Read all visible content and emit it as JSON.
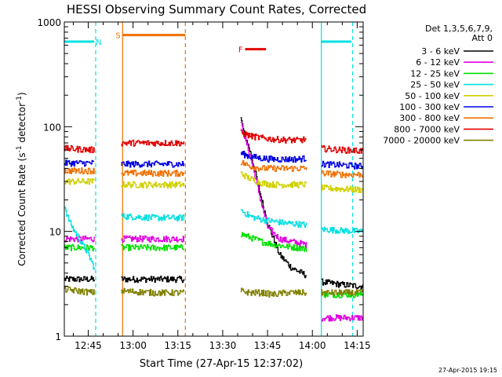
{
  "chart_data": {
    "type": "line",
    "title": "HESSI Observing Summary Count Rates, Corrected",
    "xlabel": "Start Time (27-Apr-15 12:37:02)",
    "ylabel": "Corrected Count Rate (s",
    "ylabel_sup1": "-1",
    "ylabel_mid": " detector",
    "ylabel_sup2": "-1",
    "ylabel_end": ")",
    "yscale": "log",
    "ylim": [
      1,
      1000
    ],
    "xlim_minutes": [
      0,
      100
    ],
    "x_tick_labels": [
      "12:45",
      "13:00",
      "13:15",
      "13:30",
      "13:45",
      "14:00",
      "14:15"
    ],
    "x_tick_minutes": [
      8,
      23,
      38,
      53,
      68,
      83,
      98
    ],
    "y_tick_labels": [
      "1",
      "10",
      "100",
      "1000"
    ],
    "y_tick_values": [
      1,
      10,
      100,
      1000
    ],
    "legend_header": [
      "Det 1,3,5,6,7,9,",
      "Att 0"
    ],
    "legend_placement": "right",
    "footer_timestamp": "27-Apr-2015 19:15",
    "data_gaps_minutes": [
      [
        10,
        19
      ],
      [
        40,
        59
      ],
      [
        81,
        86
      ]
    ],
    "series": [
      {
        "name": "3 - 6 keV",
        "color": "#000000",
        "x": [
          0,
          10,
          19,
          30,
          40,
          59,
          60,
          62,
          64,
          66,
          68,
          72,
          76,
          81,
          86,
          93,
          99
        ],
        "y": [
          3.5,
          3.5,
          3.5,
          3.5,
          3.5,
          120,
          90,
          60,
          35,
          20,
          12,
          6,
          4.5,
          3.8,
          3.3,
          3.1,
          3.0
        ]
      },
      {
        "name": "6 - 12 keV",
        "color": "#e000e0",
        "x": [
          0,
          10,
          19,
          30,
          40,
          59,
          60,
          62,
          64,
          66,
          68,
          72,
          76,
          81,
          86,
          93,
          99
        ],
        "y": [
          8.5,
          8.5,
          8.5,
          8.5,
          8.5,
          110,
          85,
          55,
          32,
          18,
          11,
          8.5,
          8.0,
          7.5,
          1.5,
          1.5,
          1.5
        ]
      },
      {
        "name": "12 - 25 keV",
        "color": "#00e000",
        "x": [
          0,
          10,
          19,
          30,
          40,
          59,
          62,
          66,
          70,
          74,
          78,
          81,
          86,
          93,
          99
        ],
        "y": [
          7.0,
          7.0,
          7.0,
          7.0,
          7.0,
          9.5,
          8.8,
          8.0,
          7.5,
          7.2,
          7.0,
          6.8,
          2.5,
          2.5,
          2.5
        ]
      },
      {
        "name": "25 - 50 keV",
        "color": "#00e0e0",
        "x": [
          0,
          1,
          2,
          3,
          4,
          5,
          6,
          7,
          8,
          9,
          10,
          19,
          30,
          40,
          59,
          62,
          66,
          70,
          74,
          78,
          81,
          86,
          93,
          99
        ],
        "y": [
          18,
          14,
          12,
          10.5,
          9.5,
          8.5,
          7.5,
          6.8,
          6.0,
          5.2,
          4.5,
          14,
          13.5,
          13.5,
          16,
          14,
          13,
          12.5,
          12,
          11.8,
          11.5,
          10.5,
          10.2,
          10
        ]
      },
      {
        "name": "50 - 100 keV",
        "color": "#d0d000",
        "x": [
          0,
          10,
          19,
          30,
          40,
          59,
          62,
          66,
          70,
          74,
          78,
          81,
          86,
          93,
          99
        ],
        "y": [
          30,
          30,
          28,
          28,
          28,
          36,
          32,
          29,
          28,
          28,
          28,
          28,
          26,
          25.5,
          25
        ]
      },
      {
        "name": "100 - 300 keV",
        "color": "#0000e0",
        "x": [
          0,
          10,
          19,
          30,
          40,
          59,
          62,
          66,
          70,
          74,
          78,
          81,
          86,
          93,
          99
        ],
        "y": [
          45,
          45,
          44,
          44,
          44,
          56,
          52,
          50,
          49,
          49,
          49,
          50,
          44,
          43,
          42
        ]
      },
      {
        "name": "300 - 800 keV",
        "color": "#f07000",
        "x": [
          0,
          10,
          19,
          30,
          40,
          59,
          62,
          66,
          70,
          74,
          78,
          81,
          86,
          93,
          99
        ],
        "y": [
          38,
          38,
          36,
          36,
          36,
          46,
          42,
          40,
          40,
          40,
          40,
          40,
          36,
          35,
          35
        ]
      },
      {
        "name": "800 - 7000 keV",
        "color": "#e00000",
        "x": [
          0,
          10,
          19,
          30,
          40,
          59,
          62,
          66,
          70,
          74,
          78,
          81,
          86,
          93,
          99
        ],
        "y": [
          62,
          60,
          70,
          70,
          70,
          88,
          82,
          78,
          76,
          75,
          74,
          76,
          62,
          60,
          59
        ]
      },
      {
        "name": "7000 - 20000 keV",
        "color": "#808000",
        "x": [
          0,
          10,
          19,
          30,
          40,
          59,
          62,
          66,
          70,
          74,
          78,
          81,
          86,
          93,
          99
        ],
        "y": [
          2.8,
          2.6,
          2.7,
          2.6,
          2.6,
          2.7,
          2.6,
          2.6,
          2.5,
          2.6,
          2.6,
          2.6,
          2.6,
          2.6,
          2.6
        ]
      }
    ],
    "flag_bars": [
      {
        "label": "N",
        "color": "#00e0e0",
        "y": 650,
        "segments": [
          [
            -1,
            10
          ],
          [
            86,
            96
          ]
        ],
        "label_at": 11.5
      },
      {
        "label": "S",
        "color": "#f07000",
        "y": 750,
        "segments": [
          [
            19.5,
            40.5
          ]
        ],
        "label_at": 18
      },
      {
        "label": "F",
        "color": "#e00000",
        "y": 550,
        "segments": [
          [
            60.5,
            67.5
          ]
        ],
        "label_at": 59
      }
    ],
    "vertical_markers": [
      {
        "color": "#00e0e0",
        "x": -0.5,
        "style": "solid"
      },
      {
        "color": "#00e0e0",
        "x": 10.5,
        "style": "dashed"
      },
      {
        "color": "#f07000",
        "x": 19.5,
        "style": "solid"
      },
      {
        "color": "#f07000",
        "x": 40.5,
        "style": "dashed"
      },
      {
        "color": "#00e0e0",
        "x": 86.0,
        "style": "solid"
      },
      {
        "color": "#00e0e0",
        "x": 96.5,
        "style": "dashed"
      }
    ]
  }
}
